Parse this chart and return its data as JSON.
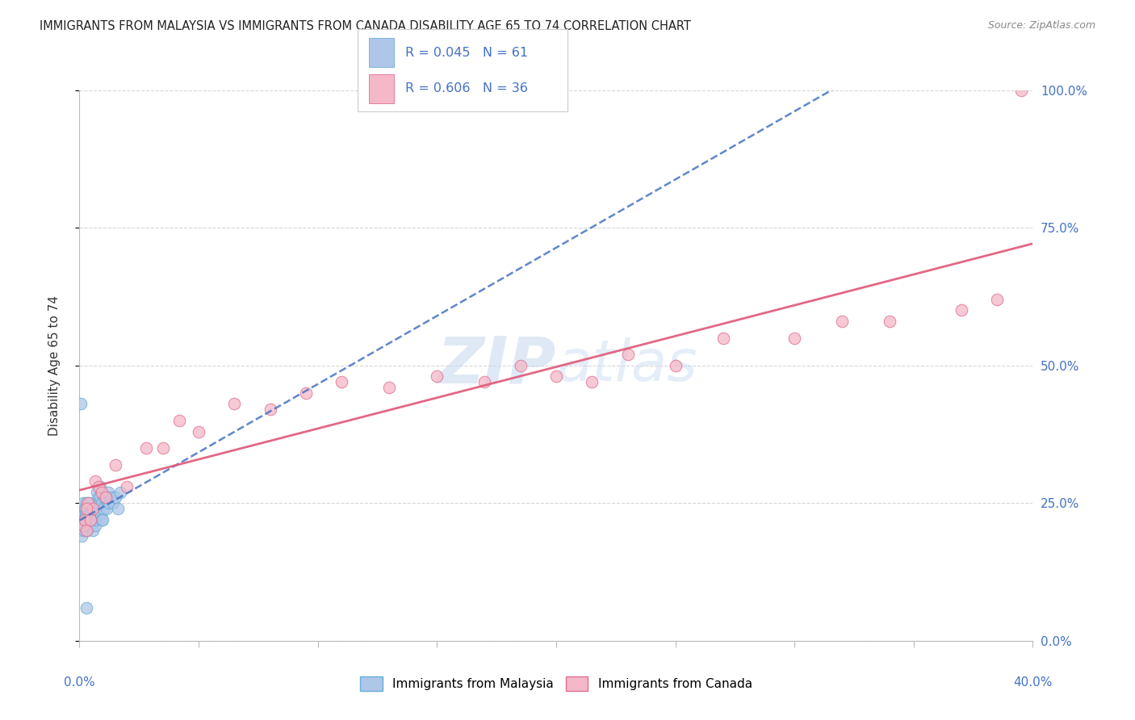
{
  "title": "IMMIGRANTS FROM MALAYSIA VS IMMIGRANTS FROM CANADA DISABILITY AGE 65 TO 74 CORRELATION CHART",
  "source": "Source: ZipAtlas.com",
  "ylabel": "Disability Age 65 to 74",
  "watermark": "ZIPatlas",
  "legend_r_malaysia": "R = 0.045",
  "legend_n_malaysia": "N = 61",
  "legend_r_canada": "R = 0.606",
  "legend_n_canada": "N = 36",
  "color_malaysia_fill": "#aec6e8",
  "color_malaysia_edge": "#6aaed6",
  "color_canada_fill": "#f4b8c8",
  "color_canada_edge": "#e07090",
  "color_trend_malaysia": "#4472c4",
  "color_trend_canada": "#e05878",
  "color_rvalue": "#4472c4",
  "xmin": 0.0,
  "xmax": 40.0,
  "ymin": 0.0,
  "ymax": 100.0,
  "yticks": [
    0,
    25,
    50,
    75,
    100
  ],
  "ytick_labels": [
    "0.0%",
    "25.0%",
    "50.0%",
    "75.0%",
    "100.0%"
  ],
  "legend_label_malaysia": "Immigrants from Malaysia",
  "legend_label_canada": "Immigrants from Canada",
  "malaysia_x": [
    0.05,
    0.08,
    0.1,
    0.12,
    0.15,
    0.15,
    0.18,
    0.2,
    0.2,
    0.22,
    0.22,
    0.25,
    0.25,
    0.28,
    0.28,
    0.3,
    0.3,
    0.32,
    0.32,
    0.35,
    0.35,
    0.38,
    0.4,
    0.4,
    0.42,
    0.45,
    0.48,
    0.5,
    0.52,
    0.55,
    0.55,
    0.58,
    0.6,
    0.62,
    0.65,
    0.68,
    0.7,
    0.72,
    0.75,
    0.78,
    0.8,
    0.82,
    0.85,
    0.88,
    0.9,
    0.92,
    0.95,
    0.98,
    1.0,
    1.05,
    1.1,
    1.15,
    1.2,
    1.25,
    1.3,
    1.4,
    1.5,
    1.6,
    1.7,
    0.05,
    0.3
  ],
  "malaysia_y": [
    20,
    19,
    22,
    21,
    25,
    22,
    23,
    22,
    20,
    24,
    21,
    23,
    21,
    24,
    22,
    25,
    23,
    22,
    20,
    24,
    22,
    21,
    23,
    22,
    25,
    23,
    22,
    21,
    24,
    22,
    20,
    23,
    24,
    22,
    23,
    21,
    22,
    27,
    24,
    25,
    26,
    25,
    28,
    26,
    23,
    22,
    25,
    22,
    24,
    26,
    26,
    24,
    27,
    25,
    26,
    25,
    26,
    24,
    27,
    43,
    6
  ],
  "canada_x": [
    0.15,
    0.22,
    0.28,
    0.35,
    0.45,
    0.55,
    0.65,
    0.8,
    0.95,
    1.1,
    1.5,
    2.0,
    2.8,
    3.5,
    4.2,
    5.0,
    6.5,
    8.0,
    9.5,
    11.0,
    13.0,
    15.0,
    17.0,
    18.5,
    20.0,
    21.5,
    23.0,
    25.0,
    27.0,
    30.0,
    32.0,
    34.0,
    37.0,
    38.5,
    0.3,
    39.5
  ],
  "canada_y": [
    21,
    22,
    20,
    25,
    22,
    24,
    29,
    28,
    27,
    26,
    32,
    28,
    35,
    35,
    40,
    38,
    43,
    42,
    45,
    47,
    46,
    48,
    47,
    50,
    48,
    47,
    52,
    50,
    55,
    55,
    58,
    58,
    60,
    62,
    24,
    100
  ]
}
